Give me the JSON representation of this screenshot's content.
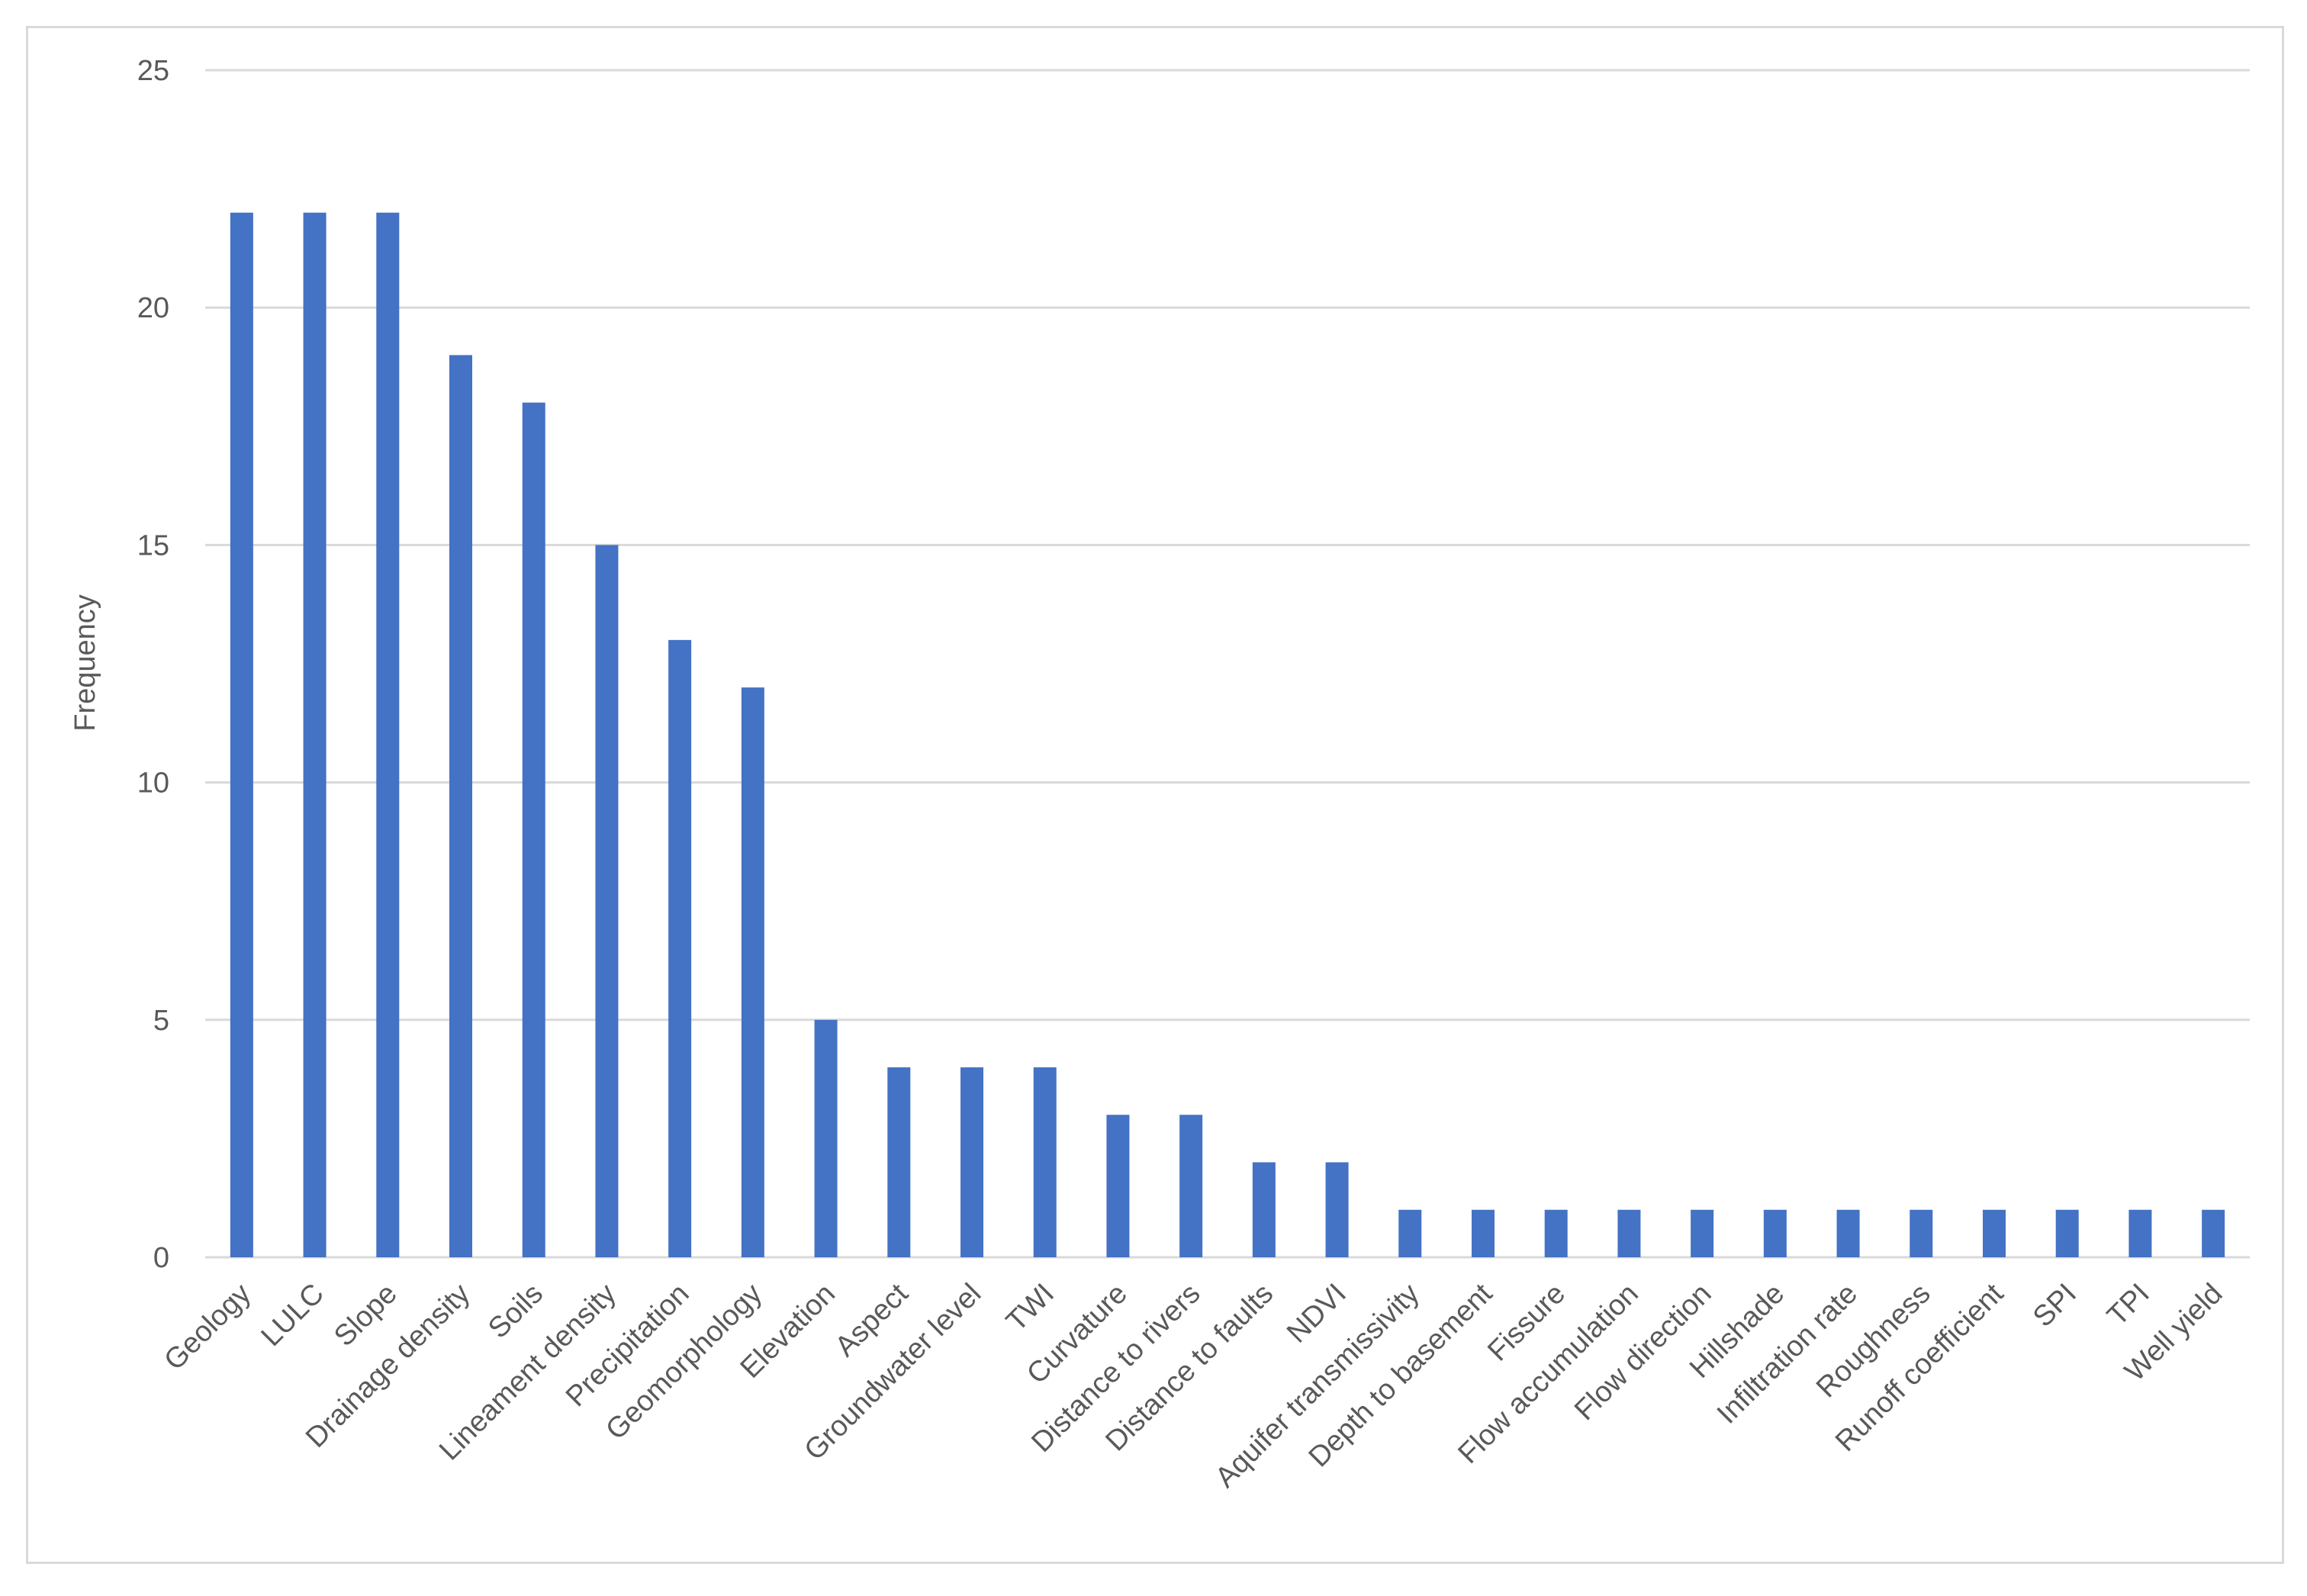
{
  "chart_data": {
    "type": "bar",
    "title": "",
    "xlabel": "",
    "ylabel": "Frequency",
    "ylim": [
      0,
      25
    ],
    "yticks": [
      0,
      5,
      10,
      15,
      20,
      25
    ],
    "grid": true,
    "legend": "none",
    "bar_color": "#4472c4",
    "categories": [
      "Geology",
      "LULC",
      "Slope",
      "Drainage density",
      "Soils",
      "Lineament density",
      "Precipitation",
      "Geomorphology",
      "Elevation",
      "Aspect",
      "Groundwater level",
      "TWI",
      "Curvature",
      "Distance to rivers",
      "Distance to faults",
      "NDVI",
      "Aquifer transmissivity",
      "Depth to basement",
      "Fissure",
      "Flow accumulation",
      "Flow direction",
      "Hillshade",
      "Infiltration rate",
      "Roughness",
      "Runoff coefficient",
      "SPI",
      "TPI",
      "Well yield"
    ],
    "values": [
      22,
      22,
      22,
      19,
      18,
      15,
      13,
      12,
      5,
      4,
      4,
      4,
      3,
      3,
      2,
      2,
      1,
      1,
      1,
      1,
      1,
      1,
      1,
      1,
      1,
      1,
      1,
      1
    ]
  }
}
